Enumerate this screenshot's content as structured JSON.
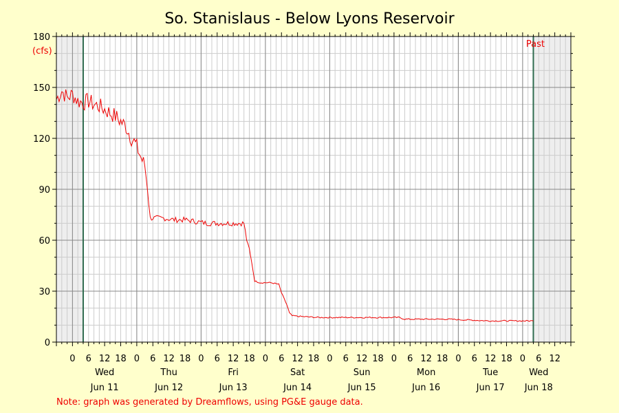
{
  "chart_data": {
    "type": "line",
    "title": "So. Stanislaus - Below Lyons Reservoir",
    "unit_label": "(cfs)",
    "ylim": [
      0,
      180
    ],
    "y_ticks": [
      "0",
      "30",
      "60",
      "90",
      "120",
      "150",
      "180"
    ],
    "x_range_hours": [
      -6,
      186
    ],
    "x_hour_ticks": [
      {
        "h": 0,
        "label": "0"
      },
      {
        "h": 6,
        "label": "6"
      },
      {
        "h": 12,
        "label": "12"
      },
      {
        "h": 18,
        "label": "18"
      },
      {
        "h": 24,
        "label": "0"
      },
      {
        "h": 30,
        "label": "6"
      },
      {
        "h": 36,
        "label": "12"
      },
      {
        "h": 42,
        "label": "18"
      },
      {
        "h": 48,
        "label": "0"
      },
      {
        "h": 54,
        "label": "6"
      },
      {
        "h": 60,
        "label": "12"
      },
      {
        "h": 66,
        "label": "18"
      },
      {
        "h": 72,
        "label": "0"
      },
      {
        "h": 78,
        "label": "6"
      },
      {
        "h": 84,
        "label": "12"
      },
      {
        "h": 90,
        "label": "18"
      },
      {
        "h": 96,
        "label": "0"
      },
      {
        "h": 102,
        "label": "6"
      },
      {
        "h": 108,
        "label": "12"
      },
      {
        "h": 114,
        "label": "18"
      },
      {
        "h": 120,
        "label": "0"
      },
      {
        "h": 126,
        "label": "6"
      },
      {
        "h": 132,
        "label": "12"
      },
      {
        "h": 138,
        "label": "18"
      },
      {
        "h": 144,
        "label": "0"
      },
      {
        "h": 150,
        "label": "6"
      },
      {
        "h": 156,
        "label": "12"
      },
      {
        "h": 162,
        "label": "18"
      },
      {
        "h": 168,
        "label": "0"
      },
      {
        "h": 174,
        "label": "6"
      },
      {
        "h": 180,
        "label": "12"
      }
    ],
    "day_labels": [
      {
        "h": 12,
        "day": "Wed",
        "date": "Jun 11"
      },
      {
        "h": 36,
        "day": "Thu",
        "date": "Jun 12"
      },
      {
        "h": 60,
        "day": "Fri",
        "date": "Jun 13"
      },
      {
        "h": 84,
        "day": "Sat",
        "date": "Jun 14"
      },
      {
        "h": 108,
        "day": "Sun",
        "date": "Jun 15"
      },
      {
        "h": 132,
        "day": "Mon",
        "date": "Jun 16"
      },
      {
        "h": 156,
        "day": "Tue",
        "date": "Jun 17"
      },
      {
        "h": 174,
        "day": "Wed",
        "date": "Jun 18"
      }
    ],
    "window_start_hour": 4,
    "window_end_hour": 172,
    "past_label": "Past",
    "series": [
      {
        "color": "#ee0000",
        "points": [
          [
            -6,
            143
          ],
          [
            -4,
            148
          ],
          [
            -2,
            144
          ],
          [
            0,
            146
          ],
          [
            2,
            142
          ],
          [
            4,
            141
          ],
          [
            6,
            142
          ],
          [
            8,
            140
          ],
          [
            10,
            139
          ],
          [
            12,
            137
          ],
          [
            14,
            135
          ],
          [
            16,
            133
          ],
          [
            18,
            130
          ],
          [
            20,
            127
          ],
          [
            22,
            120
          ],
          [
            23,
            118
          ],
          [
            24,
            115
          ],
          [
            26,
            107
          ],
          [
            27,
            104
          ],
          [
            28,
            90
          ],
          [
            29,
            73
          ],
          [
            30,
            73
          ],
          [
            34,
            73
          ],
          [
            38,
            72
          ],
          [
            42,
            72
          ],
          [
            46,
            71
          ],
          [
            50,
            70
          ],
          [
            54,
            70
          ],
          [
            58,
            70
          ],
          [
            62,
            70
          ],
          [
            64,
            70
          ],
          [
            65,
            60
          ],
          [
            66,
            55
          ],
          [
            67,
            46
          ],
          [
            68,
            36
          ],
          [
            70,
            35
          ],
          [
            74,
            35
          ],
          [
            77,
            34
          ],
          [
            78,
            29
          ],
          [
            80,
            22
          ],
          [
            81,
            17
          ],
          [
            82,
            15.5
          ],
          [
            86,
            15
          ],
          [
            92,
            14.5
          ],
          [
            100,
            14.5
          ],
          [
            108,
            14.5
          ],
          [
            116,
            14.5
          ],
          [
            122,
            14.5
          ],
          [
            124,
            13.5
          ],
          [
            132,
            13.5
          ],
          [
            140,
            13.5
          ],
          [
            148,
            13
          ],
          [
            156,
            12.5
          ],
          [
            164,
            12.5
          ],
          [
            170,
            12.5
          ],
          [
            172,
            12.5
          ]
        ]
      }
    ]
  },
  "footnote": "Note: graph was generated by Dreamflows, using PG&E gauge data."
}
